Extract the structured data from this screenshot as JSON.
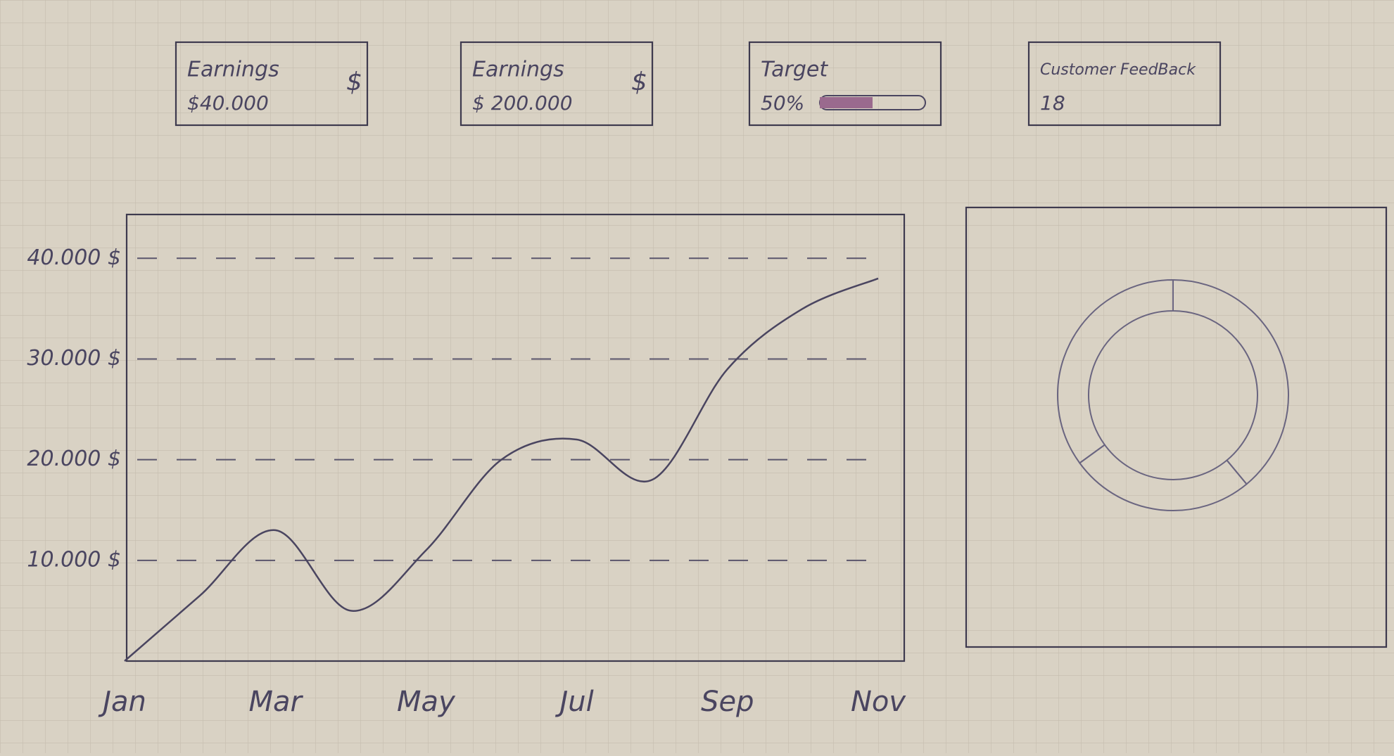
{
  "cards": [
    {
      "title": "Earnings",
      "value": "$40.000",
      "icon": "$"
    },
    {
      "title": "Earnings",
      "value": "$ 200.000",
      "icon": "$"
    },
    {
      "title": "Target",
      "value": "50%",
      "progress": 50
    },
    {
      "title": "Customer FeedBack",
      "value": "18"
    }
  ],
  "chart_data": [
    {
      "type": "line",
      "categories": [
        "Jan",
        null,
        "Mar",
        null,
        "May",
        null,
        "Jul",
        null,
        "Sep",
        null,
        "Nov"
      ],
      "values": [
        0,
        6500,
        13000,
        5000,
        11000,
        20000,
        22000,
        18000,
        29000,
        35000,
        38000
      ],
      "color": "#4a4560",
      "ylim": [
        0,
        44000
      ],
      "yticks": [
        {
          "value": 10000,
          "label": "10.000 $"
        },
        {
          "value": 20000,
          "label": "20.000 $"
        },
        {
          "value": 30000,
          "label": "30.000 $"
        },
        {
          "value": 40000,
          "label": "40.000 $"
        }
      ],
      "grid": true
    },
    {
      "type": "pie",
      "donut": true,
      "values": [
        39,
        26,
        35
      ],
      "color": "#6a6580"
    }
  ]
}
